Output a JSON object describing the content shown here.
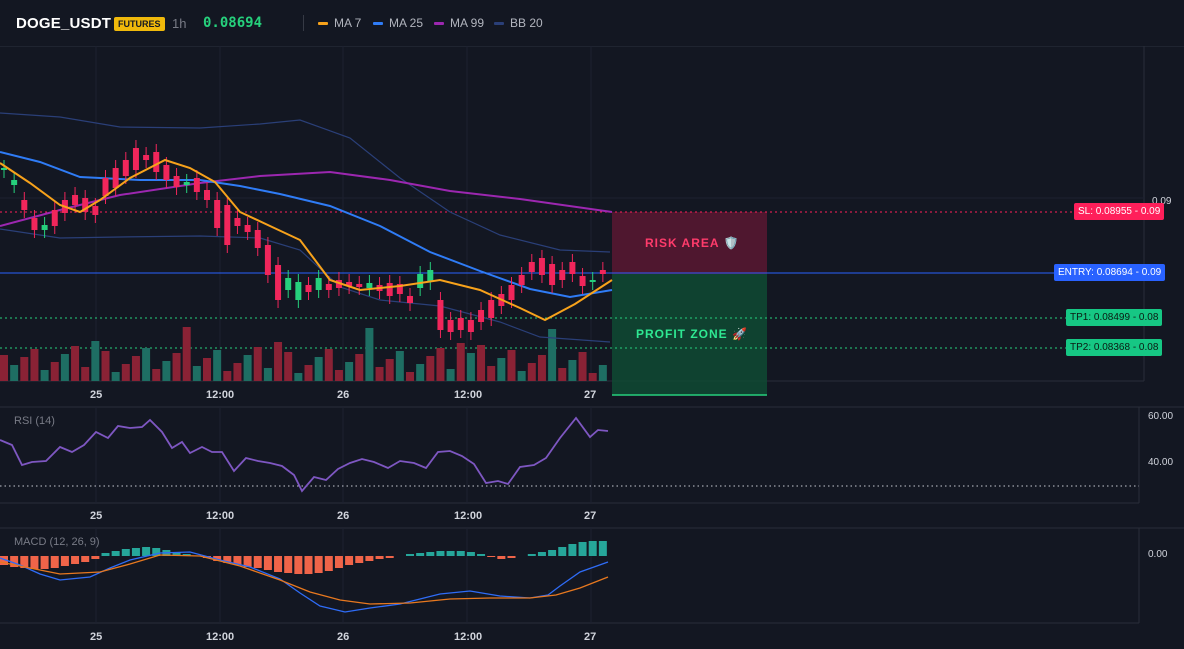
{
  "header": {
    "symbol": "DOGE_USDT",
    "badge": "FUTURES",
    "timeframe": "1h",
    "price": "0.08694",
    "indicators": [
      {
        "label": "MA 7",
        "color": "#f7a21b"
      },
      {
        "label": "MA 25",
        "color": "#2f7cf6"
      },
      {
        "label": "MA 99",
        "color": "#9c27b0"
      },
      {
        "label": "BB 20",
        "color": "#2a3f78"
      }
    ]
  },
  "levels": {
    "sl": "SL: 0.08955 - 0.09",
    "entry": "ENTRY: 0.08694 - 0.09",
    "tp1": "TP1: 0.08499 - 0.08",
    "tp2": "TP2: 0.08368 - 0.08",
    "axis_label": "0.09"
  },
  "zones": {
    "risk": "RISK AREA 🛡️",
    "profit": "PROFIT ZONE 🚀"
  },
  "time_axis": [
    "25",
    "12:00",
    "26",
    "12:00",
    "27"
  ],
  "rsi": {
    "title": "RSI (14)",
    "scale": [
      "60.00",
      "40.00"
    ]
  },
  "macd": {
    "title": "MACD (12, 26, 9)",
    "scale": [
      "0.00"
    ]
  },
  "colors": {
    "up": "#26d07c",
    "down": "#f0265b",
    "volume_up": "#1e6e63",
    "volume_down": "#8a2235",
    "rsi_line": "#7e57c2",
    "macd_line": "#2f6cf6",
    "signal_line": "#e7781f",
    "hist_up": "#26a69a",
    "hist_down": "#f06449"
  }
}
